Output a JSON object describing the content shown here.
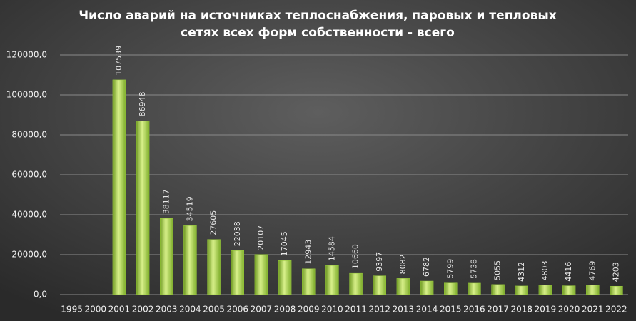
{
  "chart_data": {
    "type": "bar",
    "title": [
      "Число аварий на источниках теплоснабжения, паровых и тепловых",
      "сетях всех форм собственности - всего"
    ],
    "categories": [
      "1995",
      "2000",
      "2001",
      "2002",
      "2003",
      "2004",
      "2005",
      "2006",
      "2007",
      "2008",
      "2009",
      "2010",
      "2011",
      "2012",
      "2013",
      "2014",
      "2015",
      "2016",
      "2017",
      "2018",
      "2019",
      "2020",
      "2021",
      "2022"
    ],
    "values": [
      null,
      null,
      107539,
      86948,
      38117,
      34519,
      27605,
      22038,
      20107,
      17045,
      12943,
      14584,
      10660,
      9397,
      8082,
      6782,
      5799,
      5738,
      5055,
      4312,
      4803,
      4416,
      4769,
      4203
    ],
    "color": "#9acd3c",
    "ylim": [
      0,
      120000
    ],
    "yticks": [
      {
        "value": 0,
        "label": "0,0"
      },
      {
        "value": 20000,
        "label": "20000,0"
      },
      {
        "value": 40000,
        "label": "40000,0"
      },
      {
        "value": 60000,
        "label": "60000,0"
      },
      {
        "value": 80000,
        "label": "80000,0"
      },
      {
        "value": 100000,
        "label": "100000,0"
      },
      {
        "value": 120000,
        "label": "120000,0"
      }
    ],
    "grid": true
  }
}
